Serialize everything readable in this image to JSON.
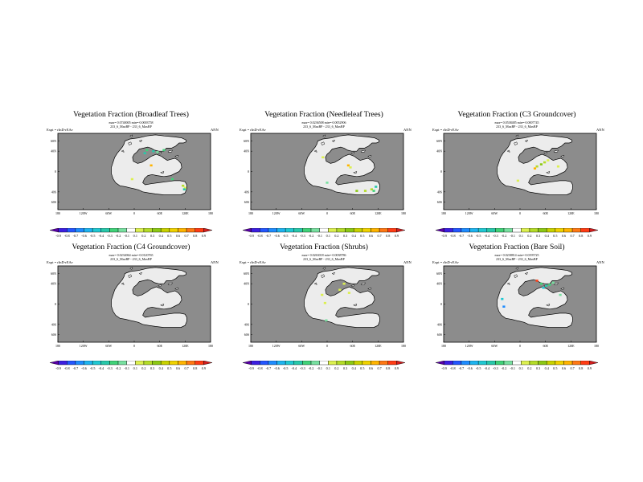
{
  "colorbar": {
    "ticks": [
      "-0.9",
      "-0.8",
      "-0.7",
      "-0.6",
      "-0.5",
      "-0.4",
      "-0.3",
      "-0.2",
      "-0.1",
      "0.1",
      "0.2",
      "0.3",
      "0.4",
      "0.5",
      "0.6",
      "0.7",
      "0.8",
      "0.9"
    ],
    "colors": [
      "#5a00a8",
      "#3c1ee0",
      "#2456ff",
      "#1e8cff",
      "#1eb4f0",
      "#20c8d2",
      "#28c8aa",
      "#40d278",
      "#78e0a0",
      "#ffffff",
      "#dcf050",
      "#b4dc28",
      "#8cc814",
      "#c8d200",
      "#f0d200",
      "#ffb400",
      "#ff7814",
      "#ff3c14",
      "#d21e1e"
    ]
  },
  "colors": {
    "ocean": "#8c8c8c",
    "land": "#ececec",
    "coast": "#000000",
    "frame": "#000000"
  },
  "panels": [
    {
      "title": "Vegetation Fraction (Broadleaf Trees)",
      "stats1": "max= 0.0740005  min=-0.0003758",
      "stats2": "233_6_MaxBP - 233_6_MaxBP",
      "expt": "Expt = rInD-rEAv",
      "season": "ANN",
      "lat_labels": [
        "60N",
        "40N",
        "0",
        "40S",
        "60S"
      ],
      "lon_labels": [
        "180",
        "120W",
        "60W",
        "0",
        "60E",
        "120E",
        "180"
      ],
      "anomalies": [
        {
          "lon": 30,
          "lat": 42,
          "color": "#40d278"
        },
        {
          "lon": 45,
          "lat": 40,
          "color": "#28c8aa"
        },
        {
          "lon": 55,
          "lat": 38,
          "color": "#78e0a0"
        },
        {
          "lon": 70,
          "lat": 42,
          "color": "#40d278"
        },
        {
          "lon": 25,
          "lat": 36,
          "color": "#28c8aa"
        },
        {
          "lon": 40,
          "lat": 12,
          "color": "#ffb400"
        },
        {
          "lon": 115,
          "lat": -28,
          "color": "#b4dc28"
        },
        {
          "lon": 120,
          "lat": -32,
          "color": "#dcf050"
        },
        {
          "lon": 118,
          "lat": -35,
          "color": "#28c8aa"
        },
        {
          "lon": -5,
          "lat": -15,
          "color": "#dcf050"
        },
        {
          "lon": 90,
          "lat": -15,
          "color": "#40d278"
        }
      ]
    },
    {
      "title": "Vegetation Fraction (Needleleaf Trees)",
      "stats1": "max= 0.0236508  min=-0.0052906",
      "stats2": "233_6_MaxBP - 233_6_MaxBP",
      "expt": "Expt = rInD-rEAv",
      "season": "ANN",
      "lat_labels": [
        "60N",
        "40N",
        "0",
        "40S",
        "60S"
      ],
      "lon_labels": [
        "180",
        "120W",
        "60W",
        "0",
        "60E",
        "120E",
        "180"
      ],
      "anomalies": [
        {
          "lon": -10,
          "lat": 28,
          "color": "#dcf050"
        },
        {
          "lon": 50,
          "lat": 12,
          "color": "#ffb400"
        },
        {
          "lon": 55,
          "lat": 8,
          "color": "#dcf050"
        },
        {
          "lon": 70,
          "lat": -38,
          "color": "#8cc814"
        },
        {
          "lon": 90,
          "lat": -38,
          "color": "#b4dc28"
        },
        {
          "lon": 105,
          "lat": -35,
          "color": "#b4dc28"
        },
        {
          "lon": 115,
          "lat": -30,
          "color": "#28c8aa"
        },
        {
          "lon": 110,
          "lat": -38,
          "color": "#40d278"
        },
        {
          "lon": 0,
          "lat": -22,
          "color": "#78e0a0"
        }
      ]
    },
    {
      "title": "Vegetation Fraction (C3 Groundcover)",
      "stats1": "max= 0.0538485  min=-0.0007745",
      "stats2": "233_6_MaxBP - 233_6_MaxBP",
      "expt": "Expt = rInD-rEAv",
      "season": "ANN",
      "lat_labels": [
        "60N",
        "40N",
        "0",
        "40S",
        "60S"
      ],
      "lon_labels": [
        "180",
        "120W",
        "60W",
        "0",
        "60E",
        "120E",
        "180"
      ],
      "anomalies": [
        {
          "lon": 40,
          "lat": 10,
          "color": "#b4dc28"
        },
        {
          "lon": 50,
          "lat": 14,
          "color": "#8cc814"
        },
        {
          "lon": 58,
          "lat": 18,
          "color": "#b4dc28"
        },
        {
          "lon": 66,
          "lat": 22,
          "color": "#dcf050"
        },
        {
          "lon": 35,
          "lat": 6,
          "color": "#ffb400"
        },
        {
          "lon": -5,
          "lat": -18,
          "color": "#dcf050"
        },
        {
          "lon": 90,
          "lat": 10,
          "color": "#dcf050"
        }
      ]
    },
    {
      "title": "Vegetation Fraction (C4 Groundcover)",
      "stats1": "max= 0.0234064  min=-0.0120765",
      "stats2": "233_6_MaxBP - 233_6_MaxBP",
      "expt": "Expt = rInD-rEAv",
      "season": "ANN",
      "lat_labels": [
        "60N",
        "40N",
        "0",
        "40S",
        "60S"
      ],
      "lon_labels": [
        "180",
        "120W",
        "60W",
        "0",
        "60E",
        "120E",
        "180"
      ],
      "anomalies": []
    },
    {
      "title": "Vegetation Fraction (Shrubs)",
      "stats1": "max= 0.0263018  min=-0.0038786",
      "stats2": "233_6_MaxBP - 233_6_MaxBP",
      "expt": "Expt = rInD-rEAv",
      "season": "ANN",
      "lat_labels": [
        "60N",
        "40N",
        "0",
        "40S",
        "60S"
      ],
      "lon_labels": [
        "180",
        "120W",
        "60W",
        "0",
        "60E",
        "120E",
        "180"
      ],
      "anomalies": [
        {
          "lon": 40,
          "lat": 40,
          "color": "#dcf050"
        },
        {
          "lon": 52,
          "lat": 22,
          "color": "#dcf050"
        },
        {
          "lon": 30,
          "lat": 28,
          "color": "#dcf050"
        },
        {
          "lon": -12,
          "lat": 18,
          "color": "#dcf050"
        },
        {
          "lon": -5,
          "lat": 2,
          "color": "#dcf050"
        },
        {
          "lon": -2,
          "lat": -32,
          "color": "#78e0a0"
        }
      ]
    },
    {
      "title": "Vegetation Fraction (Bare Soil)",
      "stats1": "max= 0.0238814  min=-0.0195725",
      "stats2": "233_6_MaxBP - 233_6_MaxBP",
      "expt": "Expt = rInD-rEAv",
      "season": "ANN",
      "lat_labels": [
        "60N",
        "40N",
        "0",
        "40S",
        "60S"
      ],
      "lon_labels": [
        "180",
        "120W",
        "60W",
        "0",
        "60E",
        "120E",
        "180"
      ],
      "anomalies": [
        {
          "lon": 50,
          "lat": 40,
          "color": "#40d278"
        },
        {
          "lon": 62,
          "lat": 36,
          "color": "#28c8aa"
        },
        {
          "lon": 70,
          "lat": 38,
          "color": "#40d278"
        },
        {
          "lon": 78,
          "lat": 42,
          "color": "#78e0a0"
        },
        {
          "lon": 55,
          "lat": 32,
          "color": "#20c8d2"
        },
        {
          "lon": 40,
          "lat": 46,
          "color": "#ff3c14"
        },
        {
          "lon": -38,
          "lat": -5,
          "color": "#1e8cff"
        },
        {
          "lon": -42,
          "lat": 10,
          "color": "#20c8d2"
        },
        {
          "lon": 95,
          "lat": 18,
          "color": "#78e0a0"
        }
      ]
    }
  ]
}
